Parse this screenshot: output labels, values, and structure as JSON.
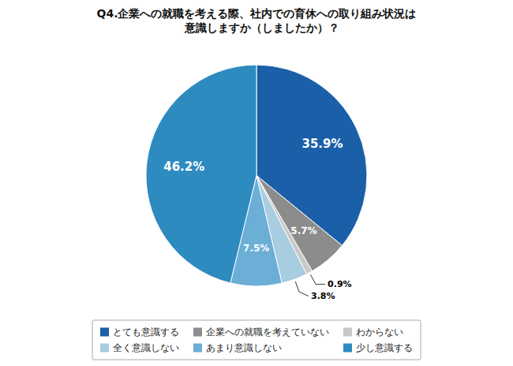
{
  "chart_data": {
    "type": "pie",
    "title": "Q4.企業への就職を考える際、社内での育休への取り組み状況は\n　意識しますか（しましたか）？",
    "categories": [
      "とても意識する",
      "企業への就職を考えていない",
      "わからない",
      "全く意識しない",
      "あまり意識しない",
      "少し意識する"
    ],
    "values": [
      35.9,
      5.7,
      0.9,
      3.8,
      7.5,
      46.2
    ],
    "value_labels": [
      "35.9%",
      "5.7%",
      "0.9%",
      "3.8%",
      "7.5%",
      "46.2%"
    ],
    "colors": [
      "#1a5fa8",
      "#8c8c8c",
      "#c8c8c8",
      "#a8cce0",
      "#6baed6",
      "#2e8bc0"
    ],
    "data_labels": true,
    "legend": "bottom"
  }
}
